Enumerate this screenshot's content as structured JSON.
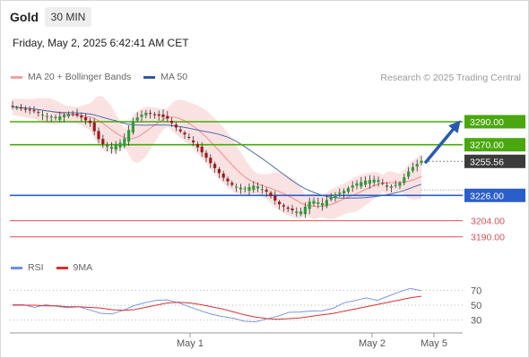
{
  "header": {
    "instrument": "Gold",
    "timeframe": "30 MIN",
    "timestamp": "Friday, May 2, 2025 6:42:41 AM CET",
    "credit": "Research © 2025 Trading Central"
  },
  "legend": {
    "main": [
      {
        "label": "MA 20 + Bollinger Bands",
        "color": "#f2a0a0"
      },
      {
        "label": "MA 50",
        "color": "#2e5a9e"
      }
    ],
    "rsi": [
      {
        "label": "RSI",
        "color": "#6f8fe0"
      },
      {
        "label": "9MA",
        "color": "#d93030"
      }
    ]
  },
  "chart_data": [
    {
      "type": "candlestick",
      "ylim": [
        3178,
        3318
      ],
      "levels": [
        {
          "label": "3290.00",
          "value": 3290.0,
          "kind": "resistance",
          "color": "#4aa70f"
        },
        {
          "label": "3270.00",
          "value": 3270.0,
          "kind": "resistance",
          "color": "#4aa70f"
        },
        {
          "label": "3255.56",
          "value": 3255.56,
          "kind": "last-price",
          "color": "#3b3b3b"
        },
        {
          "label": "3226.00",
          "value": 3226.0,
          "kind": "pivot",
          "color": "#2a5fc9"
        },
        {
          "label": "3204.00",
          "value": 3204.0,
          "kind": "support",
          "color": "#e05050"
        },
        {
          "label": "3190.00",
          "value": 3190.0,
          "kind": "support",
          "color": "#e05050"
        }
      ],
      "forecast_arrow": {
        "from": 3255.56,
        "to": 3290.0
      },
      "anchors": [
        3303,
        3301,
        3299,
        3295,
        3294,
        3297,
        3295,
        3289,
        3271,
        3268,
        3273,
        3292,
        3298,
        3296,
        3293,
        3283,
        3276,
        3265,
        3253,
        3242,
        3234,
        3232,
        3235,
        3229,
        3219,
        3214,
        3211,
        3222,
        3219,
        3226,
        3230,
        3236,
        3239,
        3240,
        3233,
        3236,
        3249,
        3256
      ]
    },
    {
      "type": "line",
      "title": "RSI",
      "ylim": [
        20,
        80
      ],
      "yticks": [
        70,
        50,
        30
      ],
      "series": [
        {
          "name": "RSI",
          "values": [
            51,
            52,
            48,
            50,
            47,
            46,
            49,
            45,
            39,
            37,
            42,
            50,
            55,
            57,
            56,
            52,
            48,
            44,
            39,
            34,
            31,
            28,
            29,
            33,
            35,
            39,
            40,
            43,
            44,
            46,
            52,
            55,
            60,
            58,
            63,
            67,
            71,
            69
          ]
        },
        {
          "name": "9MA",
          "values": [
            50,
            50,
            50,
            49,
            49,
            48,
            48,
            47,
            46,
            44,
            43,
            44,
            47,
            50,
            53,
            54,
            53,
            51,
            48,
            45,
            41,
            37,
            34,
            32,
            31,
            32,
            33,
            35,
            37,
            39,
            42,
            45,
            48,
            51,
            54,
            57,
            60,
            62
          ]
        }
      ]
    }
  ],
  "x_axis": {
    "labels": [
      "May 1",
      "May 2",
      "May 5"
    ]
  }
}
